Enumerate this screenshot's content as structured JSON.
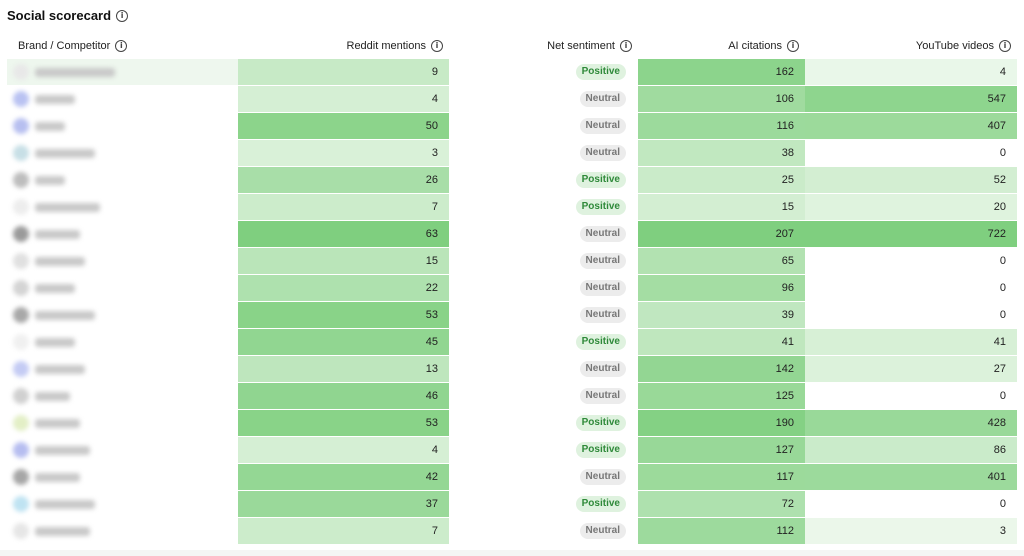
{
  "title": "Social scorecard",
  "columns": [
    {
      "key": "brand",
      "label": "Brand / Competitor"
    },
    {
      "key": "reddit",
      "label": "Reddit mentions"
    },
    {
      "key": "sentiment",
      "label": "Net sentiment"
    },
    {
      "key": "ai",
      "label": "AI citations"
    },
    {
      "key": "youtube",
      "label": "YouTube videos"
    }
  ],
  "rows": [
    {
      "reddit": "9",
      "sentiment": "Positive",
      "ai": "162",
      "youtube": "4",
      "logo_color": "#e8e8e8"
    },
    {
      "reddit": "4",
      "sentiment": "Neutral",
      "ai": "106",
      "youtube": "547",
      "logo_color": "#b9c2f2"
    },
    {
      "reddit": "50",
      "sentiment": "Neutral",
      "ai": "116",
      "youtube": "407",
      "logo_color": "#b7bff0"
    },
    {
      "reddit": "3",
      "sentiment": "Neutral",
      "ai": "38",
      "youtube": "0",
      "logo_color": "#c7dfe6"
    },
    {
      "reddit": "26",
      "sentiment": "Positive",
      "ai": "25",
      "youtube": "52",
      "logo_color": "#bdbdbd"
    },
    {
      "reddit": "7",
      "sentiment": "Positive",
      "ai": "15",
      "youtube": "20",
      "logo_color": "#ededed"
    },
    {
      "reddit": "63",
      "sentiment": "Neutral",
      "ai": "207",
      "youtube": "722",
      "logo_color": "#9a9a9a"
    },
    {
      "reddit": "15",
      "sentiment": "Neutral",
      "ai": "65",
      "youtube": "0",
      "logo_color": "#e0e0e0"
    },
    {
      "reddit": "22",
      "sentiment": "Neutral",
      "ai": "96",
      "youtube": "0",
      "logo_color": "#d4d4d4"
    },
    {
      "reddit": "53",
      "sentiment": "Neutral",
      "ai": "39",
      "youtube": "0",
      "logo_color": "#a8a8a8"
    },
    {
      "reddit": "45",
      "sentiment": "Positive",
      "ai": "41",
      "youtube": "41",
      "logo_color": "#f0f0f0"
    },
    {
      "reddit": "13",
      "sentiment": "Neutral",
      "ai": "142",
      "youtube": "27",
      "logo_color": "#c4cbf4"
    },
    {
      "reddit": "46",
      "sentiment": "Neutral",
      "ai": "125",
      "youtube": "0",
      "logo_color": "#d0d0d0"
    },
    {
      "reddit": "53",
      "sentiment": "Positive",
      "ai": "190",
      "youtube": "428",
      "logo_color": "#e3efc6"
    },
    {
      "reddit": "4",
      "sentiment": "Positive",
      "ai": "127",
      "youtube": "86",
      "logo_color": "#b6bdf0"
    },
    {
      "reddit": "42",
      "sentiment": "Neutral",
      "ai": "117",
      "youtube": "401",
      "logo_color": "#a6a6a6"
    },
    {
      "reddit": "37",
      "sentiment": "Positive",
      "ai": "72",
      "youtube": "0",
      "logo_color": "#bfe3f2"
    },
    {
      "reddit": "7",
      "sentiment": "Neutral",
      "ai": "112",
      "youtube": "3",
      "logo_color": "#e6e6e6"
    }
  ],
  "colors": {
    "heat_low": "#f2faf1",
    "heat_high": "#7fcf7f",
    "positive_text": "#2f8a3a",
    "neutral_text": "#777777"
  }
}
